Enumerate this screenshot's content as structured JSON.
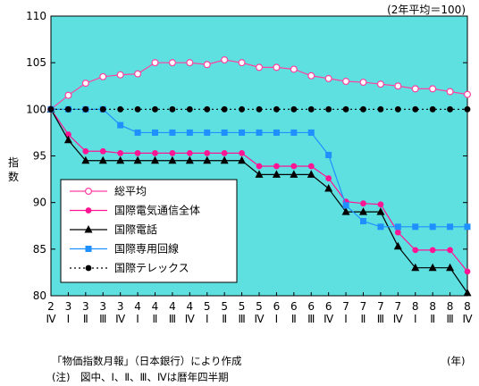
{
  "chart_data": {
    "type": "line",
    "unit_note": "(2年平均＝100)",
    "ylabel": "指数",
    "xlabel": "(年)",
    "ylim": [
      80,
      110
    ],
    "yticks": [
      80,
      85,
      90,
      95,
      100,
      105,
      110
    ],
    "grid": false,
    "legend_position": "bottom-left",
    "background": "#5ee0e0",
    "x_years": [
      "2",
      "3",
      "3",
      "3",
      "3",
      "4",
      "4",
      "4",
      "4",
      "5",
      "5",
      "5",
      "5",
      "6",
      "6",
      "6",
      "6",
      "7",
      "7",
      "7",
      "7",
      "8",
      "8",
      "8",
      "8"
    ],
    "x_quarters": [
      "Ⅳ",
      "Ⅰ",
      "Ⅱ",
      "Ⅲ",
      "Ⅳ",
      "Ⅰ",
      "Ⅱ",
      "Ⅲ",
      "Ⅳ",
      "Ⅰ",
      "Ⅱ",
      "Ⅲ",
      "Ⅳ",
      "Ⅰ",
      "Ⅱ",
      "Ⅲ",
      "Ⅳ",
      "Ⅰ",
      "Ⅱ",
      "Ⅲ",
      "Ⅳ",
      "Ⅰ",
      "Ⅱ",
      "Ⅲ",
      "Ⅳ"
    ],
    "series": [
      {
        "name": "総平均",
        "color": "#ff40a0",
        "marker": "circle-open",
        "line": "solid",
        "values": [
          100,
          101.5,
          102.8,
          103.5,
          103.7,
          103.8,
          105.0,
          105.0,
          105.0,
          104.8,
          105.3,
          105.0,
          104.5,
          104.5,
          104.3,
          103.6,
          103.3,
          103.0,
          102.9,
          102.7,
          102.5,
          102.2,
          102.2,
          101.9,
          101.6
        ]
      },
      {
        "name": "国際電気通信全体",
        "color": "#ff1493",
        "marker": "circle-filled",
        "line": "solid",
        "values": [
          100,
          97.3,
          95.5,
          95.5,
          95.3,
          95.3,
          95.3,
          95.3,
          95.3,
          95.3,
          95.3,
          95.3,
          93.9,
          93.9,
          93.9,
          93.9,
          92.6,
          90.1,
          89.9,
          89.8,
          86.8,
          84.9,
          84.9,
          84.9,
          82.6
        ]
      },
      {
        "name": "国際電話",
        "color": "#000000",
        "marker": "triangle",
        "line": "solid",
        "values": [
          100,
          96.7,
          94.5,
          94.5,
          94.5,
          94.5,
          94.5,
          94.5,
          94.5,
          94.5,
          94.5,
          94.5,
          93.0,
          93.0,
          93.0,
          93.0,
          91.5,
          89.0,
          89.0,
          89.0,
          85.3,
          83.0,
          83.0,
          83.0,
          80.3
        ]
      },
      {
        "name": "国際専用回線",
        "color": "#1e90ff",
        "marker": "square",
        "line": "solid",
        "values": [
          100,
          100,
          100,
          100,
          98.3,
          97.5,
          97.5,
          97.5,
          97.5,
          97.5,
          97.5,
          97.5,
          97.5,
          97.5,
          97.5,
          97.5,
          95.1,
          89.7,
          88.0,
          87.4,
          87.4,
          87.4,
          87.4,
          87.4,
          87.4
        ]
      },
      {
        "name": "国際テレックス",
        "color": "#000000",
        "marker": "circle-filled",
        "line": "dotted",
        "values": [
          100,
          100,
          100,
          100,
          100,
          100,
          100,
          100,
          100,
          100,
          100,
          100,
          100,
          100,
          100,
          100,
          100,
          100,
          100,
          100,
          100,
          100,
          100,
          100,
          100
        ]
      }
    ]
  },
  "notes": {
    "source": "「物価指数月報」（日本銀行）により作成",
    "remark": "(注)　図中、Ⅰ、Ⅱ、Ⅲ、Ⅳは暦年四半期"
  }
}
